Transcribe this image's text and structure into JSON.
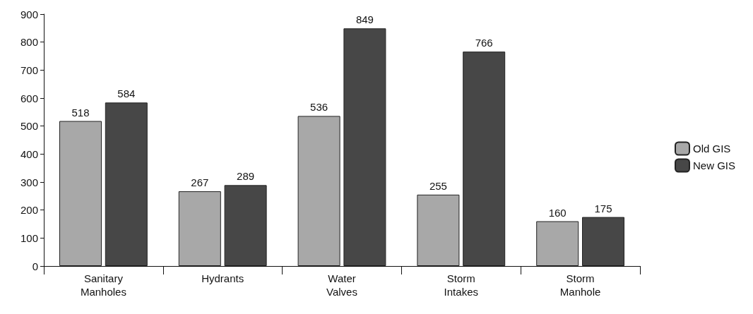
{
  "chart_data": {
    "type": "bar",
    "categories": [
      "Sanitary\nManholes",
      "Hydrants",
      "Water\nValves",
      "Storm\nIntakes",
      "Storm\nManhole"
    ],
    "series": [
      {
        "name": "Old GIS",
        "color": "#a8a8a8",
        "values": [
          518,
          267,
          536,
          255,
          160
        ]
      },
      {
        "name": "New GIS",
        "color": "#474747",
        "values": [
          584,
          289,
          849,
          766,
          175
        ]
      }
    ],
    "ylim": [
      0,
      900
    ],
    "yticks": [
      0,
      100,
      200,
      300,
      400,
      500,
      600,
      700,
      800,
      900
    ],
    "data_labels": true,
    "legend": "right",
    "grid": false
  }
}
